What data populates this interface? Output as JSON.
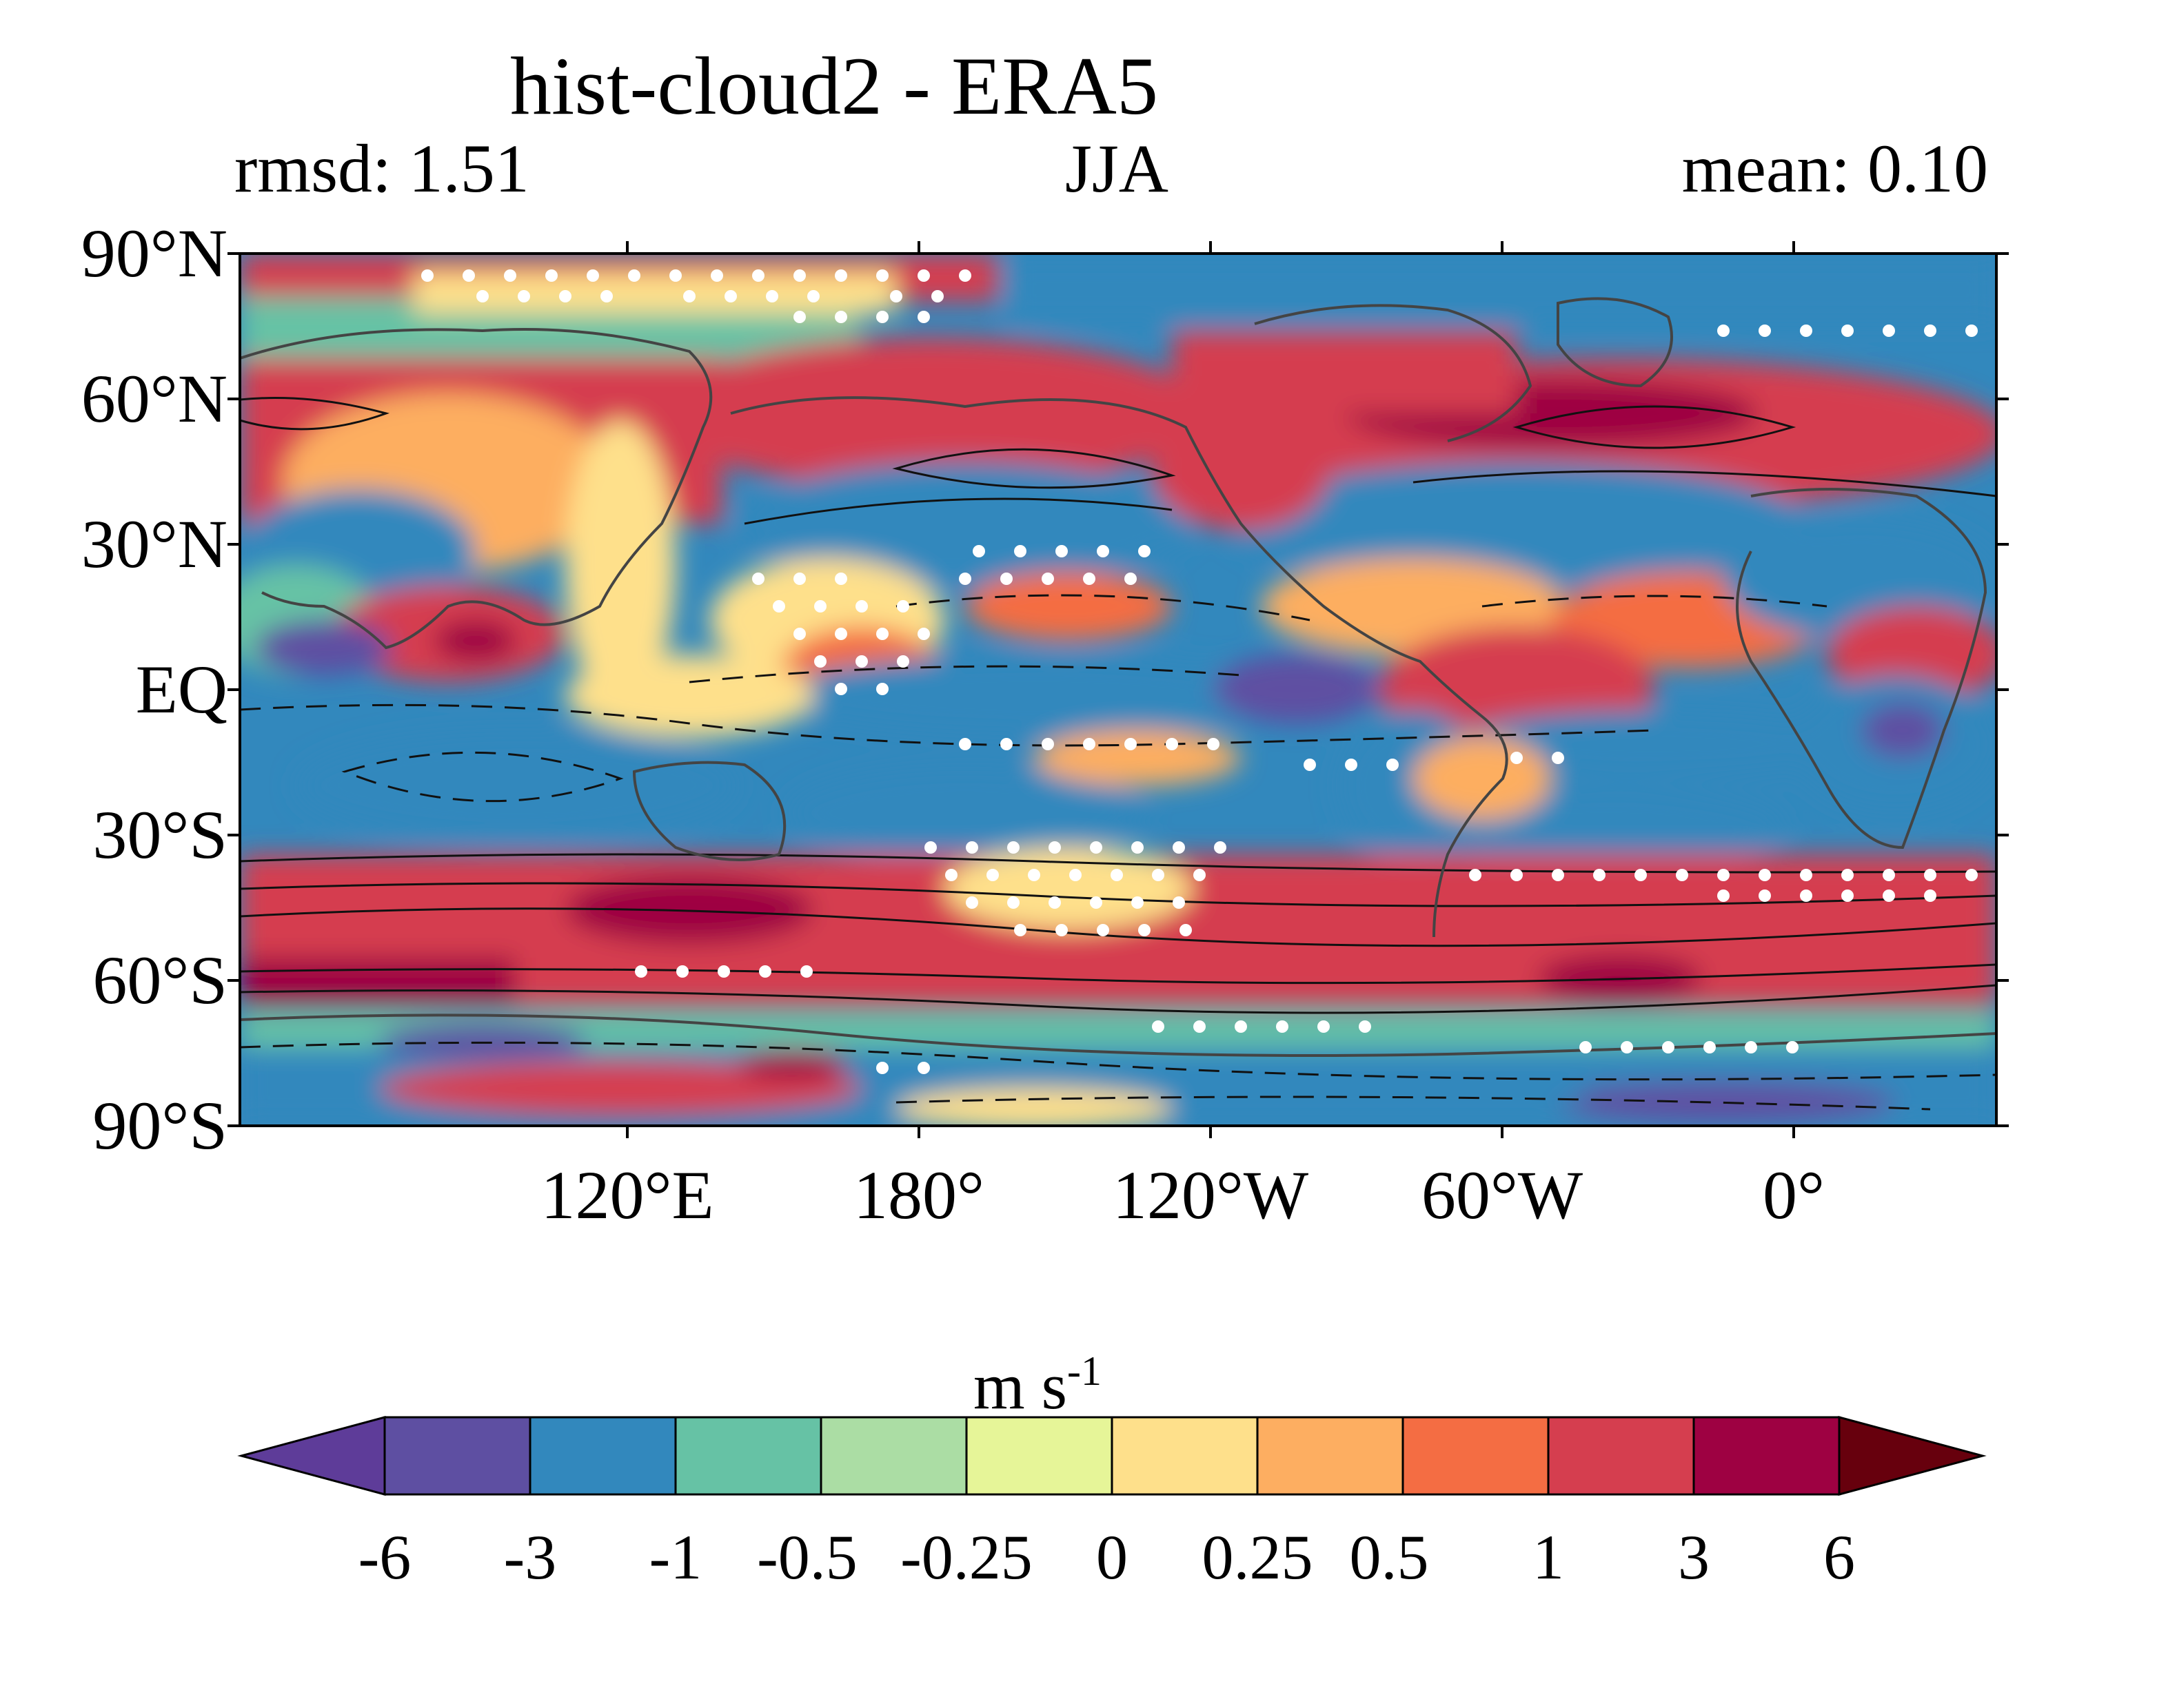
{
  "map": {
    "title": "hist-cloud2 - ERA5",
    "stats": {
      "rmsd_label": "rmsd: 1.51",
      "season": "JJA",
      "mean_label": "mean: 0.10"
    },
    "lat_ticks": [
      "90°N",
      "60°N",
      "30°N",
      "EQ",
      "30°S",
      "60°S",
      "90°S"
    ],
    "lon_ticks": [
      "120°E",
      "180°",
      "120°W",
      "60°W",
      "0°"
    ],
    "colorbar": {
      "unit_base": "m s",
      "unit_exp": "-1",
      "levels": [
        "-6",
        "-3",
        "-1",
        "-0.5",
        "-0.25",
        "0",
        "0.25",
        "0.5",
        "1",
        "3",
        "6"
      ],
      "colors": [
        "#5e3c99",
        "#5e4fa2",
        "#3288bd",
        "#66c2a5",
        "#abdda4",
        "#e6f598",
        "#fee08b",
        "#fdae61",
        "#f46d43",
        "#d53e4f",
        "#9e0142",
        "#67000d"
      ]
    }
  }
}
